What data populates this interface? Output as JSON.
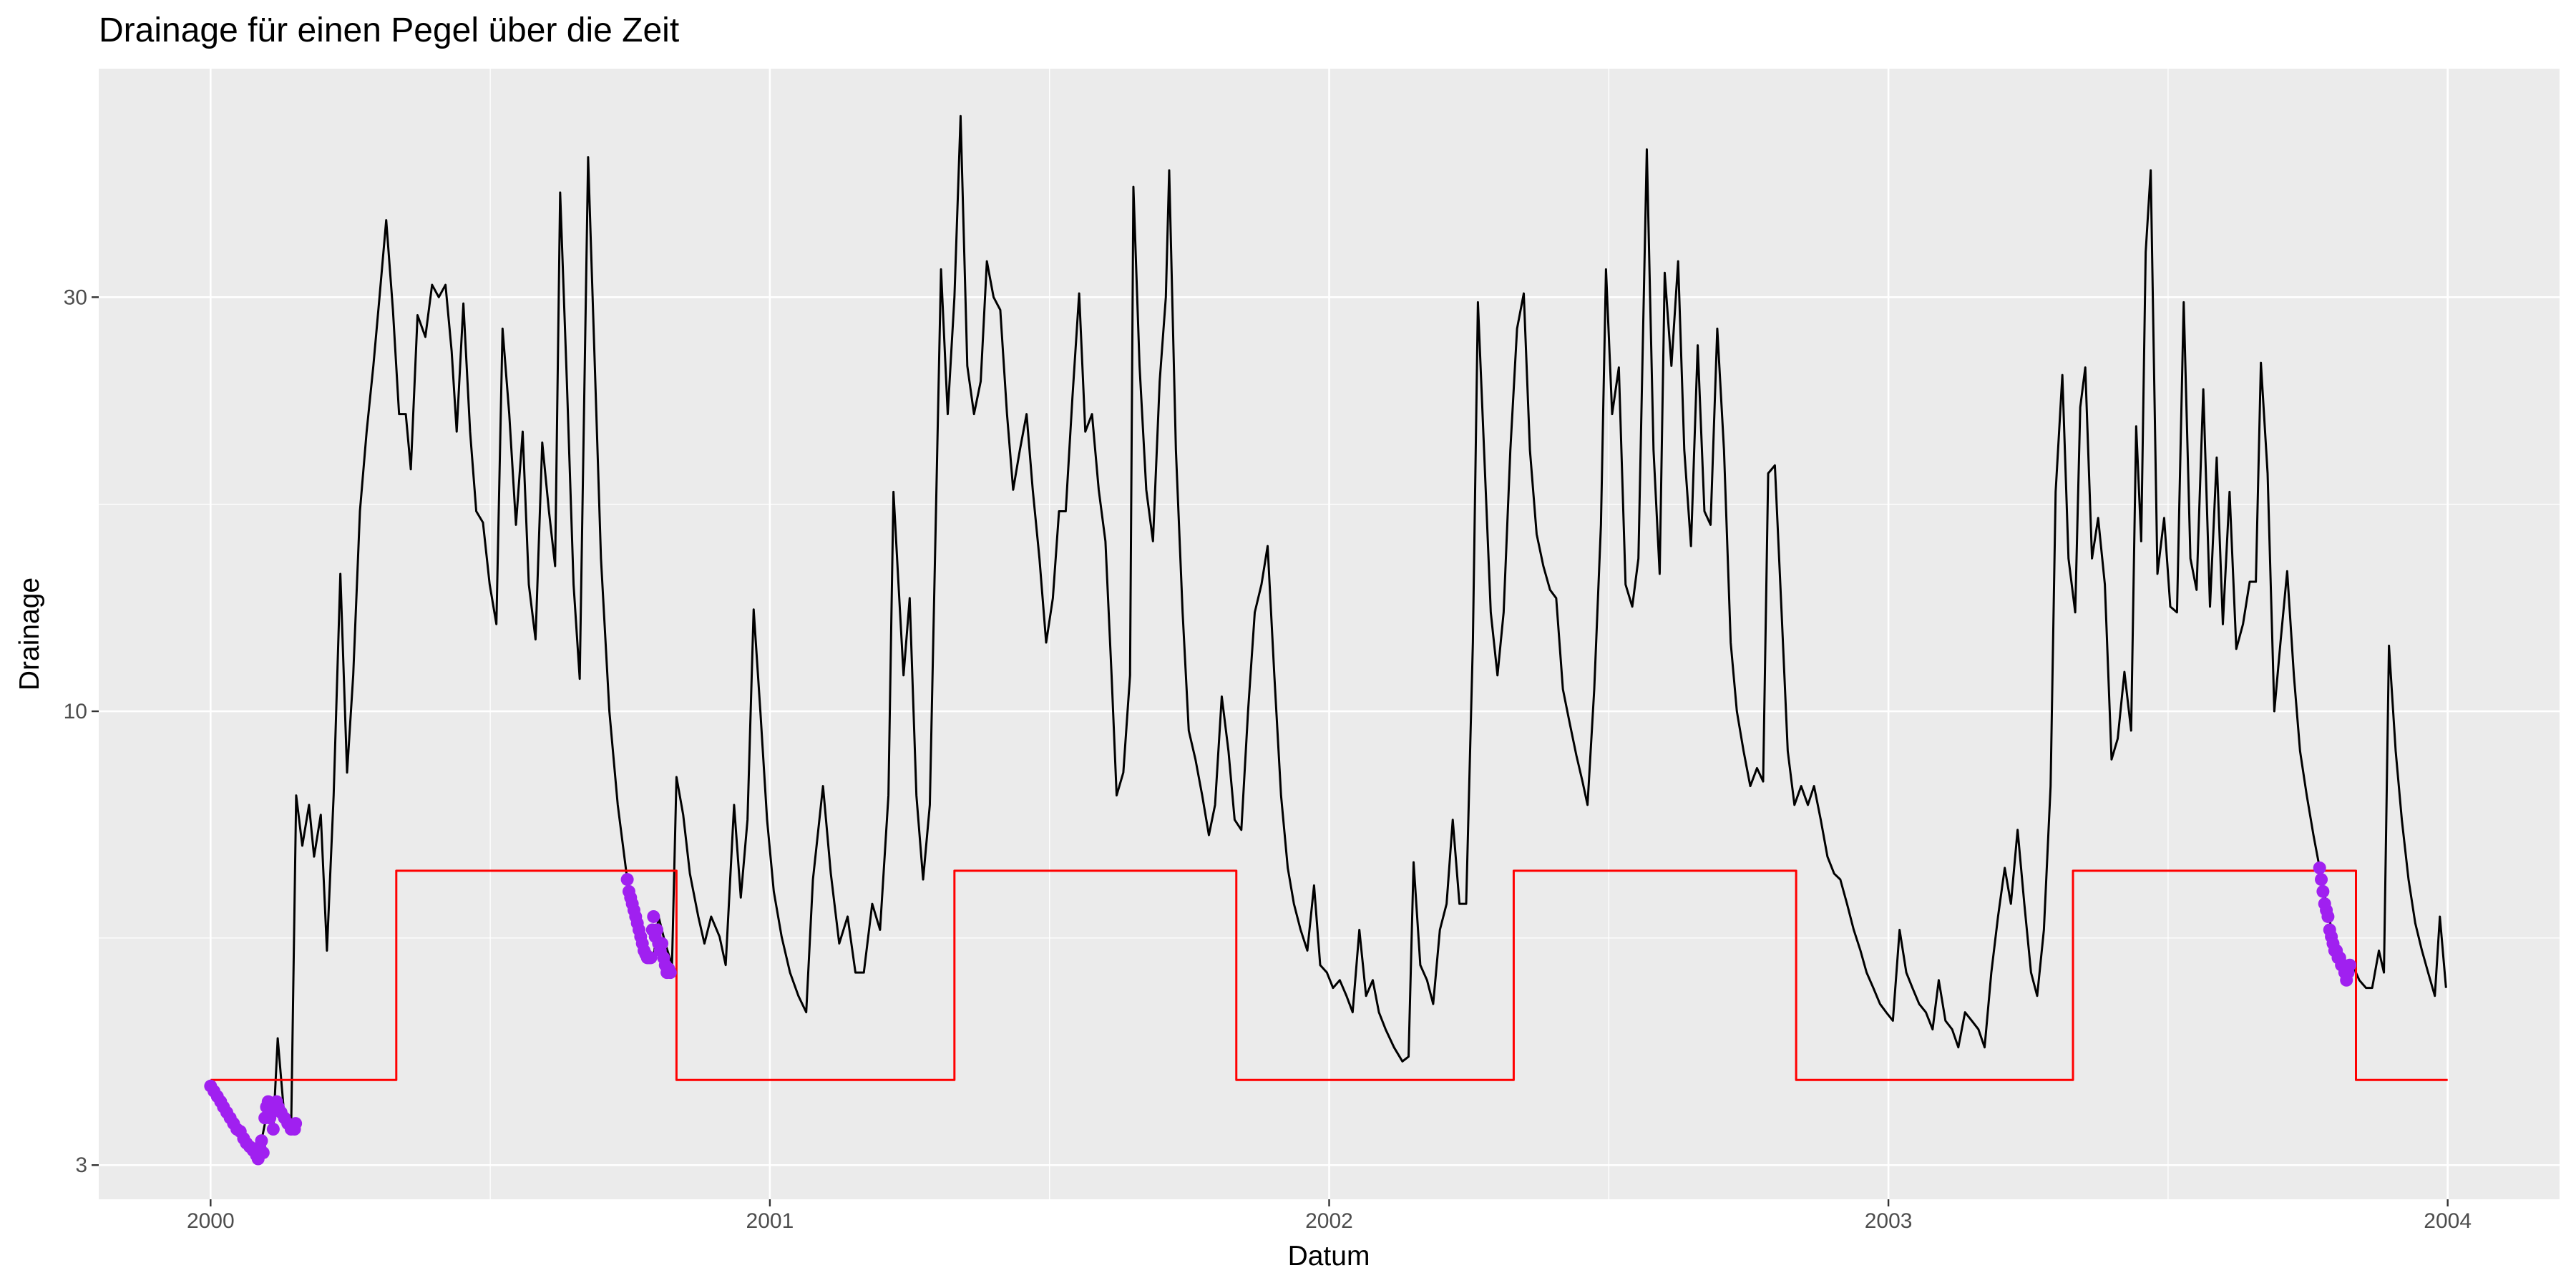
{
  "chart_data": {
    "type": "line",
    "title": "Drainage für einen Pegel über die Zeit",
    "x_label": "Datum",
    "y_label": "Drainage",
    "xlim": [
      1999.8,
      2004.2
    ],
    "xticks": [
      2000,
      2001,
      2002,
      2003,
      2004
    ],
    "x_minor_ticks": [
      2000.5,
      2001.5,
      2002.5,
      2003.5
    ],
    "ylim": [
      2.74,
      55
    ],
    "yticks": [
      3,
      10,
      30
    ],
    "y_minor_ticks": [
      5.48,
      17.32
    ],
    "log_y": true,
    "grid": true,
    "series": [
      {
        "type": "line",
        "color": "#000000",
        "x": [
          2000.0,
          2000.023,
          2000.053,
          2000.067,
          2000.082,
          2000.091,
          2000.103,
          2000.112,
          2000.12,
          2000.132,
          2000.144,
          2000.153,
          2000.164,
          2000.176,
          2000.185,
          2000.197,
          2000.208,
          2000.22,
          2000.232,
          2000.244,
          2000.255,
          2000.267,
          2000.279,
          2000.291,
          2000.302,
          2000.314,
          2000.326,
          2000.337,
          2000.349,
          2000.358,
          2000.37,
          2000.384,
          2000.396,
          2000.408,
          2000.42,
          2000.431,
          2000.44,
          2000.452,
          2000.464,
          2000.475,
          2000.487,
          2000.499,
          2000.511,
          2000.522,
          2000.534,
          2000.546,
          2000.558,
          2000.569,
          2000.581,
          2000.593,
          2000.605,
          2000.616,
          2000.625,
          2000.637,
          2000.649,
          2000.66,
          2000.675,
          2000.687,
          2000.698,
          2000.713,
          2000.728,
          2000.745,
          2000.757,
          2000.769,
          2000.781,
          2000.792,
          2000.801,
          2000.813,
          2000.825,
          2000.833,
          2000.845,
          2000.857,
          2000.872,
          2000.883,
          2000.895,
          2000.91,
          2000.921,
          2000.936,
          2000.948,
          2000.96,
          2000.971,
          2000.983,
          2000.995,
          2001.007,
          2001.021,
          2001.036,
          2001.051,
          2001.065,
          2001.077,
          2001.095,
          2001.109,
          2001.124,
          2001.139,
          2001.153,
          2001.168,
          2001.183,
          2001.197,
          2001.212,
          2001.221,
          2001.23,
          2001.239,
          2001.25,
          2001.262,
          2001.274,
          2001.286,
          2001.297,
          2001.306,
          2001.318,
          2001.33,
          2001.341,
          2001.353,
          2001.365,
          2001.377,
          2001.388,
          2001.4,
          2001.412,
          2001.424,
          2001.435,
          2001.447,
          2001.459,
          2001.47,
          2001.482,
          2001.494,
          2001.506,
          2001.517,
          2001.529,
          2001.541,
          2001.553,
          2001.564,
          2001.576,
          2001.588,
          2001.6,
          2001.611,
          2001.62,
          2001.632,
          2001.644,
          2001.65,
          2001.661,
          2001.673,
          2001.685,
          2001.697,
          2001.708,
          2001.714,
          2001.726,
          2001.738,
          2001.749,
          2001.761,
          2001.773,
          2001.785,
          2001.796,
          2001.808,
          2001.82,
          2001.831,
          2001.843,
          2001.855,
          2001.867,
          2001.879,
          2001.89,
          2001.902,
          2001.914,
          2001.926,
          2001.937,
          2001.949,
          2001.961,
          2001.973,
          2001.984,
          2001.996,
          2002.007,
          2002.019,
          2002.031,
          2002.042,
          2002.054,
          2002.066,
          2002.078,
          2002.089,
          2002.101,
          2002.116,
          2002.131,
          2002.142,
          2002.151,
          2002.163,
          2002.175,
          2002.186,
          2002.198,
          2002.21,
          2002.221,
          2002.233,
          2002.245,
          2002.257,
          2002.266,
          2002.277,
          2002.289,
          2002.301,
          2002.312,
          2002.324,
          2002.336,
          2002.348,
          2002.359,
          2002.371,
          2002.383,
          2002.395,
          2002.406,
          2002.418,
          2002.43,
          2002.442,
          2002.453,
          2002.462,
          2002.474,
          2002.486,
          2002.495,
          2002.506,
          2002.518,
          2002.53,
          2002.542,
          2002.553,
          2002.568,
          2002.58,
          2002.591,
          2002.6,
          2002.612,
          2002.624,
          2002.635,
          2002.647,
          2002.659,
          2002.671,
          2002.682,
          2002.694,
          2002.706,
          2002.718,
          2002.729,
          2002.741,
          2002.753,
          2002.765,
          2002.776,
          2002.785,
          2002.797,
          2002.809,
          2002.82,
          2002.832,
          2002.844,
          2002.856,
          2002.867,
          2002.879,
          2002.891,
          2002.903,
          2002.914,
          2002.926,
          2002.938,
          2002.95,
          2002.961,
          2002.973,
          2002.985,
          2002.996,
          2003.008,
          2003.02,
          2003.032,
          2003.043,
          2003.055,
          2003.067,
          2003.079,
          2003.09,
          2003.102,
          2003.114,
          2003.125,
          2003.137,
          2003.149,
          2003.161,
          2003.172,
          2003.184,
          2003.196,
          2003.208,
          2003.219,
          2003.231,
          2003.243,
          2003.255,
          2003.266,
          2003.278,
          2003.29,
          2003.299,
          2003.311,
          2003.322,
          2003.334,
          2003.343,
          2003.352,
          2003.364,
          2003.375,
          2003.387,
          2003.399,
          2003.41,
          2003.422,
          2003.434,
          2003.443,
          2003.452,
          2003.46,
          2003.469,
          2003.481,
          2003.493,
          2003.504,
          2003.516,
          2003.528,
          2003.54,
          2003.551,
          2003.563,
          2003.575,
          2003.587,
          2003.598,
          2003.61,
          2003.622,
          2003.634,
          2003.646,
          2003.657,
          2003.666,
          2003.678,
          2003.69,
          2003.701,
          2003.713,
          2003.725,
          2003.736,
          2003.748,
          2003.76,
          2003.771,
          2003.783,
          2003.795,
          2003.807,
          2003.818,
          2003.83,
          2003.842,
          2003.854,
          2003.865,
          2003.877,
          2003.886,
          2003.895,
          2003.907,
          2003.918,
          2003.93,
          2003.942,
          2003.954,
          2003.965,
          2003.977,
          2003.986,
          2003.997
        ],
        "values": [
          3.7,
          3.5,
          3.3,
          3.15,
          3.1,
          3.2,
          3.5,
          3.3,
          4.2,
          3.4,
          3.3,
          8.0,
          7.0,
          7.8,
          6.8,
          7.6,
          5.3,
          8,
          14.4,
          8.5,
          11,
          17,
          21,
          25,
          30,
          36.8,
          29,
          22,
          22,
          19,
          28.6,
          27,
          31,
          30,
          31,
          26,
          21,
          29.5,
          21,
          17,
          16.5,
          14,
          12.6,
          27.6,
          22,
          16.4,
          21,
          14,
          12.1,
          20.4,
          17,
          14.7,
          39.6,
          24,
          14,
          10.9,
          43.5,
          25,
          15,
          10,
          7.8,
          6.4,
          6,
          5.6,
          5.2,
          5.2,
          5.8,
          5.4,
          5.1,
          8.4,
          7.6,
          6.5,
          5.8,
          5.4,
          5.8,
          5.5,
          5.1,
          7.8,
          6.1,
          7.5,
          13.1,
          10,
          7.5,
          6.2,
          5.5,
          5.0,
          4.7,
          4.5,
          6.4,
          8.2,
          6.5,
          5.4,
          5.8,
          5.0,
          5.0,
          6.0,
          5.6,
          8.0,
          17.9,
          14,
          11,
          13.5,
          8,
          6.4,
          7.8,
          17,
          32.3,
          22,
          30,
          48.5,
          25,
          22,
          24,
          33,
          30,
          29,
          22,
          18,
          20,
          22,
          18,
          15,
          12,
          13.5,
          17,
          17,
          23,
          30.3,
          21,
          22,
          18,
          15.7,
          11,
          8.0,
          8.5,
          11,
          40.2,
          25,
          18,
          15.7,
          24,
          30,
          42,
          20,
          13,
          9.5,
          8.8,
          8,
          7.2,
          7.8,
          10.4,
          9,
          7.5,
          7.3,
          10,
          13,
          14,
          15.5,
          11,
          8,
          6.6,
          6,
          5.6,
          5.3,
          6.3,
          5.1,
          5.0,
          4.8,
          4.9,
          4.7,
          4.5,
          5.6,
          4.7,
          4.9,
          4.5,
          4.3,
          4.1,
          3.95,
          4.0,
          6.7,
          5.1,
          4.9,
          4.6,
          5.6,
          6.0,
          7.5,
          6.0,
          6.0,
          12,
          29.6,
          20,
          13,
          11,
          13,
          20,
          27.6,
          30.3,
          20,
          16,
          14.7,
          13.8,
          13.5,
          10.6,
          9.7,
          8.9,
          8.3,
          7.8,
          10.6,
          16.4,
          32.3,
          22,
          24.9,
          14,
          13.2,
          15,
          44.4,
          20,
          14.4,
          32,
          25,
          33,
          20,
          15.5,
          26.4,
          17,
          16.4,
          27.6,
          20,
          12,
          10,
          9,
          8.2,
          8.6,
          8.3,
          18.8,
          19.2,
          13,
          9,
          7.8,
          8.2,
          7.8,
          8.2,
          7.5,
          6.8,
          6.5,
          6.4,
          6.0,
          5.6,
          5.3,
          5.0,
          4.8,
          4.6,
          4.5,
          4.4,
          5.6,
          5.0,
          4.8,
          4.6,
          4.5,
          4.3,
          4.9,
          4.4,
          4.3,
          4.1,
          4.5,
          4.4,
          4.3,
          4.1,
          5.0,
          5.8,
          6.6,
          6.0,
          7.3,
          6.0,
          5.0,
          4.7,
          5.6,
          8.2,
          17.9,
          24.4,
          15,
          13,
          22.4,
          24.9,
          15,
          16.7,
          14,
          8.8,
          9.3,
          11.1,
          9.5,
          21.3,
          15.7,
          33.8,
          42,
          14.4,
          16.7,
          13.2,
          13,
          29.6,
          15,
          13.8,
          23.5,
          13.2,
          19.6,
          12.6,
          17.9,
          11.8,
          12.6,
          14.1,
          14.1,
          25.2,
          18.8,
          10,
          12,
          14.5,
          11,
          9,
          8,
          7.2,
          6.6,
          6,
          5.5,
          5.2,
          5.0,
          5.1,
          4.9,
          4.8,
          4.8,
          5.3,
          5.0,
          11.9,
          9,
          7.5,
          6.4,
          5.7,
          5.3,
          5.0,
          4.7,
          5.8,
          4.8
        ]
      },
      {
        "type": "line",
        "color": "#ff0000",
        "x": [
          2000,
          2000.332,
          2000.332,
          2000.833,
          2000.833,
          2001.33,
          2001.33,
          2001.834,
          2001.834,
          2002.33,
          2002.33,
          2002.835,
          2002.835,
          2003.33,
          2003.33,
          2003.836,
          2003.836,
          2004
        ],
        "values": [
          3.76,
          3.76,
          6.55,
          6.55,
          3.76,
          3.76,
          6.55,
          6.55,
          3.76,
          3.76,
          6.55,
          6.55,
          3.76,
          3.76,
          6.55,
          6.55,
          3.76,
          3.76
        ]
      },
      {
        "type": "scatter",
        "color": "#a020f0",
        "x": [
          2000.0,
          2000.006,
          2000.012,
          2000.018,
          2000.023,
          2000.029,
          2000.035,
          2000.041,
          2000.047,
          2000.053,
          2000.059,
          2000.064,
          2000.07,
          2000.076,
          2000.082,
          2000.085,
          2000.088,
          2000.091,
          2000.094,
          2000.097,
          2000.1,
          2000.103,
          2000.106,
          2000.109,
          2000.112,
          2000.115,
          2000.118,
          2000.121,
          2000.126,
          2000.132,
          2000.138,
          2000.144,
          2000.15,
          2000.152,
          2000.745,
          2000.748,
          2000.751,
          2000.754,
          2000.757,
          2000.76,
          2000.763,
          2000.766,
          2000.769,
          2000.772,
          2000.775,
          2000.778,
          2000.781,
          2000.784,
          2000.787,
          2000.79,
          2000.792,
          2000.795,
          2000.798,
          2000.801,
          2000.804,
          2000.807,
          2000.81,
          2000.813,
          2000.816,
          2000.819,
          2000.822,
          2003.771,
          2003.774,
          2003.777,
          2003.78,
          2003.783,
          2003.786,
          2003.789,
          2003.792,
          2003.795,
          2003.798,
          2003.801,
          2003.804,
          2003.807,
          2003.81,
          2003.813,
          2003.816,
          2003.819,
          2003.822,
          2003.825
        ],
        "values": [
          3.7,
          3.65,
          3.6,
          3.55,
          3.5,
          3.45,
          3.4,
          3.35,
          3.3,
          3.28,
          3.22,
          3.18,
          3.15,
          3.12,
          3.08,
          3.05,
          3.15,
          3.2,
          3.1,
          3.4,
          3.5,
          3.55,
          3.4,
          3.45,
          3.3,
          3.5,
          3.55,
          3.5,
          3.45,
          3.4,
          3.35,
          3.3,
          3.3,
          3.35,
          6.4,
          6.2,
          6.1,
          6.0,
          5.9,
          5.8,
          5.7,
          5.6,
          5.5,
          5.4,
          5.3,
          5.25,
          5.2,
          5.2,
          5.2,
          5.6,
          5.8,
          5.5,
          5.6,
          5.4,
          5.3,
          5.4,
          5.2,
          5.1,
          5.0,
          5.05,
          5.0,
          6.6,
          6.4,
          6.2,
          6.0,
          5.9,
          5.8,
          5.6,
          5.5,
          5.4,
          5.3,
          5.3,
          5.2,
          5.2,
          5.1,
          5.1,
          5.0,
          4.9,
          5.0,
          5.1
        ]
      }
    ]
  }
}
